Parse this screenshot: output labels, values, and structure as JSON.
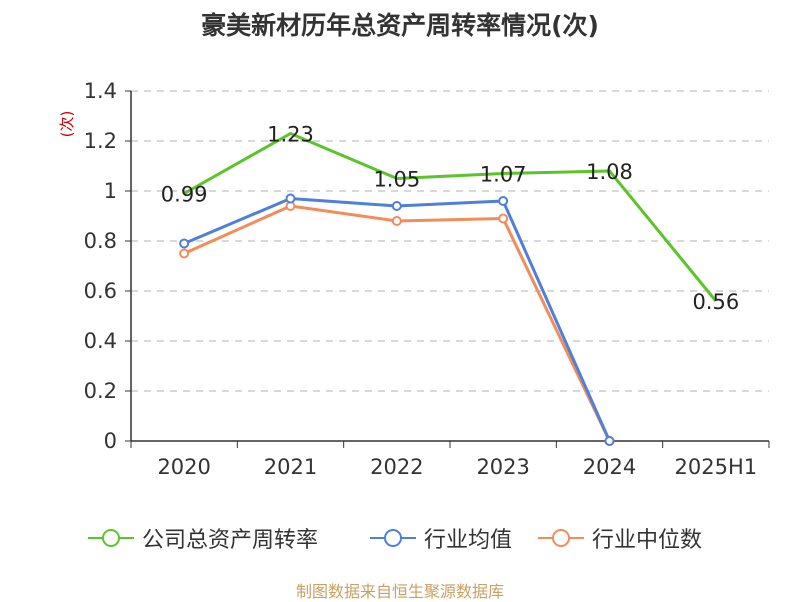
{
  "title": "豪美新材历年总资产周转率情况(次)",
  "source": "制图数据来自恒生聚源数据库",
  "chart_data": {
    "type": "line",
    "title": "豪美新材历年总资产周转率情况(次)",
    "ylabel": "(次)",
    "xlabel": "",
    "categories": [
      "2020",
      "2021",
      "2022",
      "2023",
      "2024",
      "2025H1"
    ],
    "ylim": [
      0,
      1.4
    ],
    "yticks": [
      "0",
      "0.2",
      "0.4",
      "0.6",
      "0.8",
      "1",
      "1.2",
      "1.4"
    ],
    "grid": true,
    "legend_position": "bottom",
    "series": [
      {
        "name": "公司总资产周转率",
        "color": "#5cc42b",
        "values": [
          0.99,
          1.23,
          1.05,
          1.07,
          1.08,
          0.56
        ],
        "labels": [
          "0.99",
          "1.23",
          "1.05",
          "1.07",
          "1.08",
          "0.56"
        ]
      },
      {
        "name": "行业均值",
        "color": "#4f7fd9",
        "values": [
          0.79,
          0.97,
          0.94,
          0.96,
          0,
          null
        ]
      },
      {
        "name": "行业中位数",
        "color": "#f28c5a",
        "values": [
          0.75,
          0.94,
          0.88,
          0.89,
          0,
          null
        ]
      }
    ]
  }
}
